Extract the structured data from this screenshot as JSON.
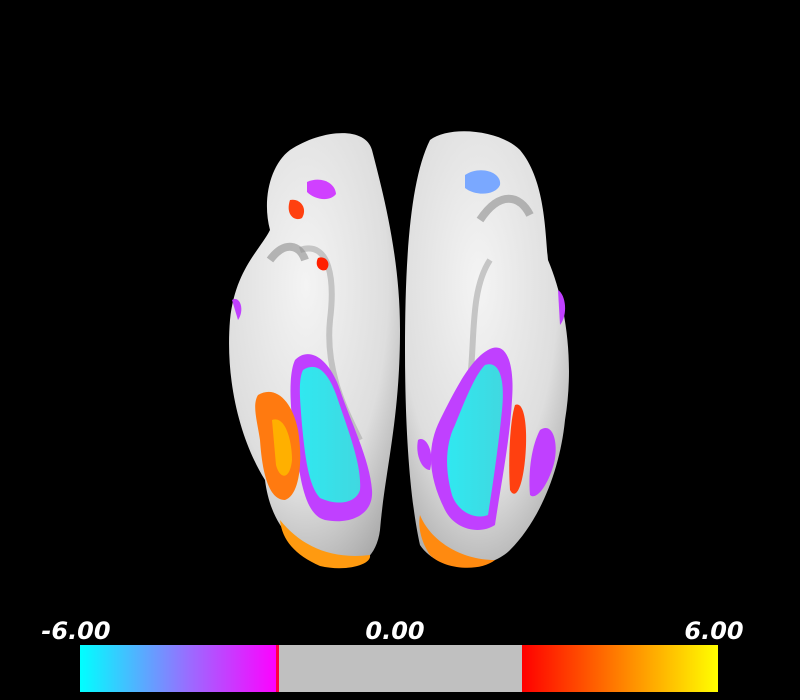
{
  "colorbar": {
    "min": -6,
    "max": 6,
    "ticks": [
      {
        "value": -6,
        "label": "-6.00"
      },
      {
        "value": 0,
        "label": "0.00"
      },
      {
        "value": 6,
        "label": "6.00"
      }
    ]
  }
}
